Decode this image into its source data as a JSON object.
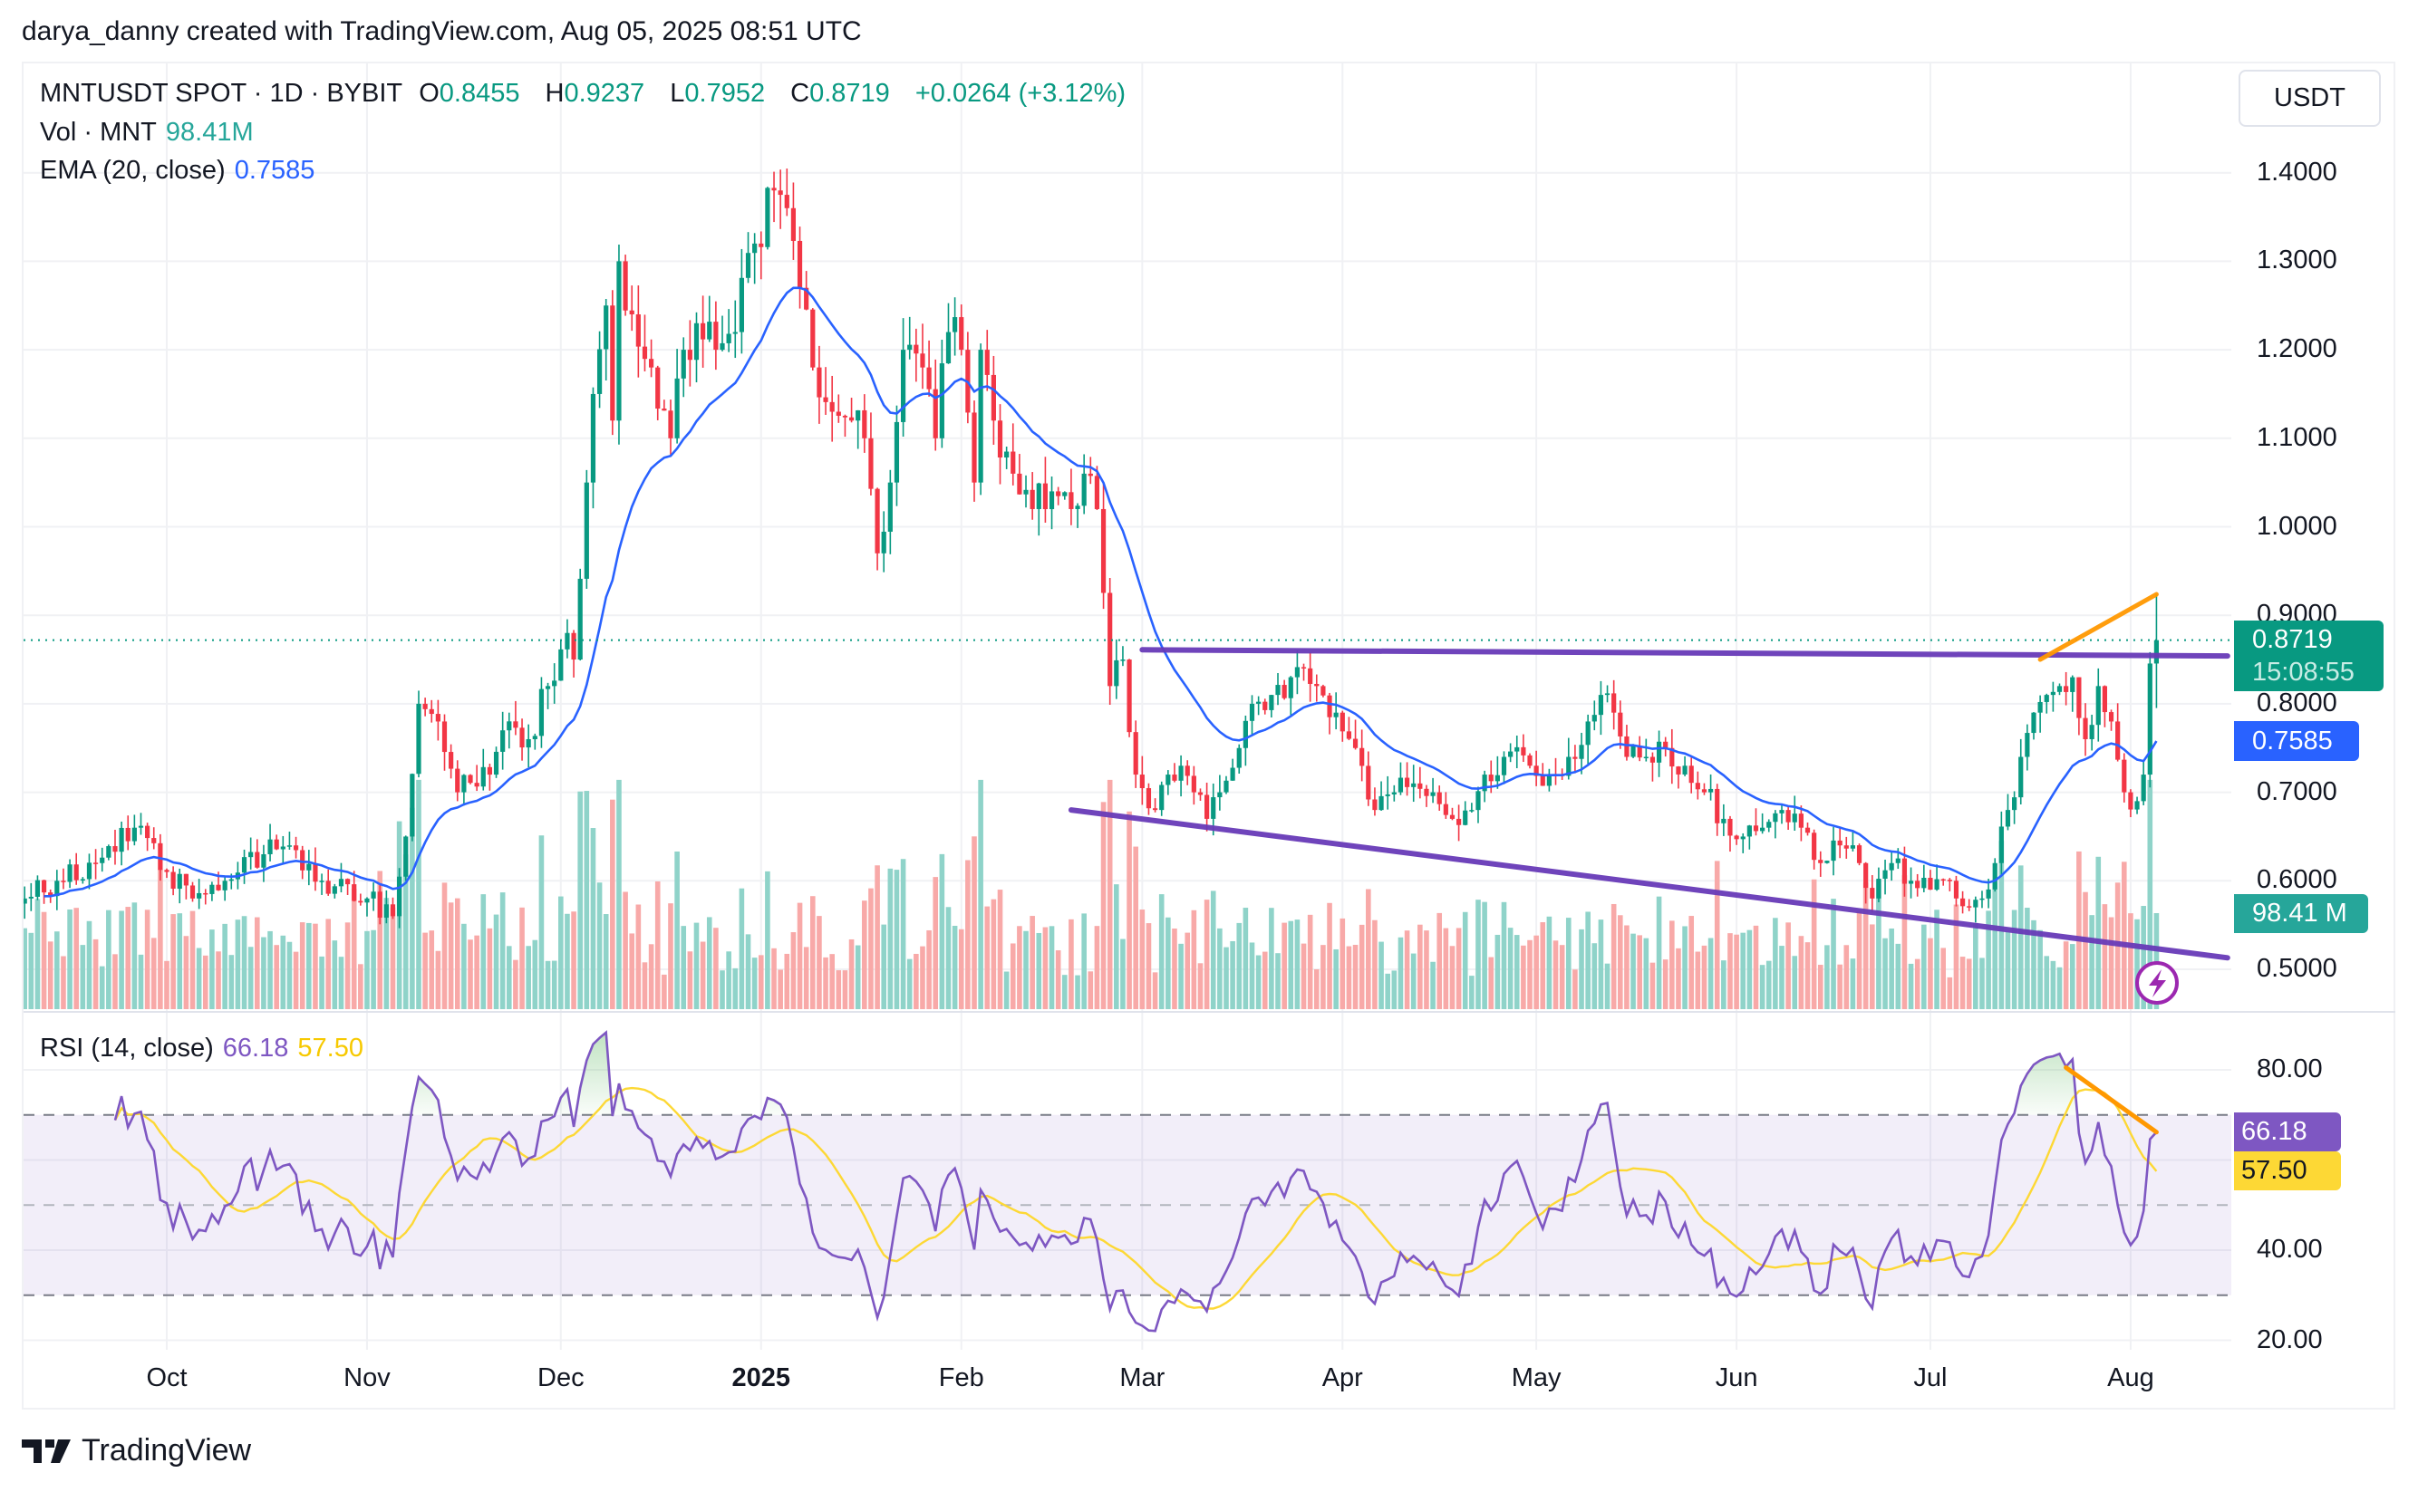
{
  "header": {
    "attribution": "darya_danny created with TradingView.com, Aug 05, 2025 08:51 UTC"
  },
  "legend": {
    "symbol": "MNTUSDT SPOT · 1D · BYBIT",
    "o_label": "O",
    "o": "0.8455",
    "h_label": "H",
    "h": "0.9237",
    "l_label": "L",
    "l": "0.7952",
    "c_label": "C",
    "c": "0.8719",
    "change": "+0.0264 (+3.12%)",
    "vol_label": "Vol · MNT",
    "vol": "98.41M",
    "ema_label": "EMA (20, close)",
    "ema": "0.7585",
    "rsi_label": "RSI (14, close)",
    "rsi": "66.18",
    "rsi_ma": "57.50"
  },
  "price_axis": {
    "currency": "USDT",
    "last_price": "0.8719",
    "countdown": "15:08:55",
    "ema_badge": "0.7585",
    "vol_badge": "98.41 M"
  },
  "rsi_axis": {
    "rsi_badge": "66.18",
    "ma_badge": "57.50"
  },
  "footer": {
    "brand": "TradingView"
  },
  "colors": {
    "up": "#089981",
    "down": "#f23645",
    "ema": "#2962ff",
    "rsi": "#7e57c2",
    "rsi_ma": "#fdd835",
    "trendline": "#673ab7",
    "divergence": "#ff9800",
    "volume_badge": "#26a69a"
  },
  "chart_data": [
    {
      "type": "candlestick",
      "title": "MNTUSDT SPOT · 1D · BYBIT",
      "x_range": [
        "2024-09-09",
        "2025-08-05"
      ],
      "ylim": [
        0.45,
        1.45
      ],
      "y_ticks": [
        "1.4000",
        "1.3000",
        "1.2000",
        "1.1000",
        "1.0000",
        "0.9000",
        "0.8000",
        "0.7000",
        "0.6000",
        "0.5000"
      ],
      "x_ticks": [
        {
          "label": "Oct",
          "date": "2024-10-01"
        },
        {
          "label": "Nov",
          "date": "2024-11-01"
        },
        {
          "label": "Dec",
          "date": "2024-12-01"
        },
        {
          "label": "2025",
          "date": "2025-01-01",
          "bold": true
        },
        {
          "label": "Feb",
          "date": "2025-02-01"
        },
        {
          "label": "Mar",
          "date": "2025-03-01"
        },
        {
          "label": "Apr",
          "date": "2025-04-01"
        },
        {
          "label": "May",
          "date": "2025-05-01"
        },
        {
          "label": "Jun",
          "date": "2025-06-01"
        },
        {
          "label": "Jul",
          "date": "2025-07-01"
        },
        {
          "label": "Aug",
          "date": "2025-08-01"
        }
      ],
      "approx_closes": [
        [
          "2024-09-09",
          0.58
        ],
        [
          "2024-09-14",
          0.6
        ],
        [
          "2024-09-20",
          0.62
        ],
        [
          "2024-09-26",
          0.66
        ],
        [
          "2024-10-01",
          0.61
        ],
        [
          "2024-10-05",
          0.58
        ],
        [
          "2024-10-10",
          0.6
        ],
        [
          "2024-10-16",
          0.63
        ],
        [
          "2024-10-20",
          0.64
        ],
        [
          "2024-10-25",
          0.6
        ],
        [
          "2024-11-01",
          0.58
        ],
        [
          "2024-11-05",
          0.56
        ],
        [
          "2024-11-07",
          0.65
        ],
        [
          "2024-11-09",
          0.8
        ],
        [
          "2024-11-12",
          0.78
        ],
        [
          "2024-11-15",
          0.7
        ],
        [
          "2024-11-20",
          0.72
        ],
        [
          "2024-11-22",
          0.77
        ],
        [
          "2024-11-26",
          0.76
        ],
        [
          "2024-11-29",
          0.82
        ],
        [
          "2024-12-02",
          0.88
        ],
        [
          "2024-12-03",
          0.85
        ],
        [
          "2024-12-05",
          1.05
        ],
        [
          "2024-12-06",
          1.15
        ],
        [
          "2024-12-08",
          1.25
        ],
        [
          "2024-12-09",
          1.12
        ],
        [
          "2024-12-10",
          1.3
        ],
        [
          "2024-12-12",
          1.24
        ],
        [
          "2024-12-15",
          1.18
        ],
        [
          "2024-12-18",
          1.1
        ],
        [
          "2024-12-20",
          1.2
        ],
        [
          "2024-12-22",
          1.23
        ],
        [
          "2024-12-25",
          1.2
        ],
        [
          "2024-12-28",
          1.22
        ],
        [
          "2024-12-31",
          1.32
        ],
        [
          "2025-01-03",
          1.38
        ],
        [
          "2025-01-05",
          1.36
        ],
        [
          "2025-01-07",
          1.27
        ],
        [
          "2025-01-09",
          1.18
        ],
        [
          "2025-01-12",
          1.13
        ],
        [
          "2025-01-15",
          1.12
        ],
        [
          "2025-01-17",
          1.1
        ],
        [
          "2025-01-19",
          0.97
        ],
        [
          "2025-01-21",
          1.05
        ],
        [
          "2025-01-23",
          1.2
        ],
        [
          "2025-01-26",
          1.18
        ],
        [
          "2025-01-28",
          1.1
        ],
        [
          "2025-01-30",
          1.22
        ],
        [
          "2025-02-01",
          1.2
        ],
        [
          "2025-02-03",
          1.05
        ],
        [
          "2025-02-04",
          1.2
        ],
        [
          "2025-02-06",
          1.12
        ],
        [
          "2025-02-09",
          1.06
        ],
        [
          "2025-02-12",
          1.02
        ],
        [
          "2025-02-15",
          1.04
        ],
        [
          "2025-02-18",
          1.02
        ],
        [
          "2025-02-20",
          1.06
        ],
        [
          "2025-02-22",
          1.02
        ],
        [
          "2025-02-24",
          0.82
        ],
        [
          "2025-02-26",
          0.85
        ],
        [
          "2025-02-28",
          0.72
        ],
        [
          "2025-03-03",
          0.68
        ],
        [
          "2025-03-05",
          0.72
        ],
        [
          "2025-03-07",
          0.73
        ],
        [
          "2025-03-09",
          0.7
        ],
        [
          "2025-03-11",
          0.67
        ],
        [
          "2025-03-13",
          0.7
        ],
        [
          "2025-03-16",
          0.75
        ],
        [
          "2025-03-18",
          0.8
        ],
        [
          "2025-03-21",
          0.81
        ],
        [
          "2025-03-24",
          0.83
        ],
        [
          "2025-03-26",
          0.84
        ],
        [
          "2025-03-28",
          0.82
        ],
        [
          "2025-03-31",
          0.79
        ],
        [
          "2025-04-03",
          0.75
        ],
        [
          "2025-04-06",
          0.68
        ],
        [
          "2025-04-09",
          0.7
        ],
        [
          "2025-04-12",
          0.71
        ],
        [
          "2025-04-15",
          0.7
        ],
        [
          "2025-04-18",
          0.67
        ],
        [
          "2025-04-21",
          0.68
        ],
        [
          "2025-04-23",
          0.72
        ],
        [
          "2025-04-26",
          0.74
        ],
        [
          "2025-04-30",
          0.73
        ],
        [
          "2025-05-03",
          0.72
        ],
        [
          "2025-05-06",
          0.74
        ],
        [
          "2025-05-09",
          0.78
        ],
        [
          "2025-05-11",
          0.81
        ],
        [
          "2025-05-13",
          0.79
        ],
        [
          "2025-05-15",
          0.74
        ],
        [
          "2025-05-18",
          0.74
        ],
        [
          "2025-05-21",
          0.75
        ],
        [
          "2025-05-24",
          0.73
        ],
        [
          "2025-05-27",
          0.7
        ],
        [
          "2025-05-30",
          0.67
        ],
        [
          "2025-06-02",
          0.65
        ],
        [
          "2025-06-05",
          0.66
        ],
        [
          "2025-06-08",
          0.68
        ],
        [
          "2025-06-11",
          0.66
        ],
        [
          "2025-06-14",
          0.62
        ],
        [
          "2025-06-17",
          0.64
        ],
        [
          "2025-06-20",
          0.62
        ],
        [
          "2025-06-22",
          0.58
        ],
        [
          "2025-06-25",
          0.62
        ],
        [
          "2025-06-28",
          0.6
        ],
        [
          "2025-07-01",
          0.59
        ],
        [
          "2025-07-04",
          0.6
        ],
        [
          "2025-07-07",
          0.57
        ],
        [
          "2025-07-09",
          0.58
        ],
        [
          "2025-07-11",
          0.62
        ],
        [
          "2025-07-13",
          0.68
        ],
        [
          "2025-07-15",
          0.74
        ],
        [
          "2025-07-17",
          0.79
        ],
        [
          "2025-07-19",
          0.81
        ],
        [
          "2025-07-21",
          0.82
        ],
        [
          "2025-07-23",
          0.83
        ],
        [
          "2025-07-25",
          0.76
        ],
        [
          "2025-07-27",
          0.82
        ],
        [
          "2025-07-29",
          0.78
        ],
        [
          "2025-07-31",
          0.7
        ],
        [
          "2025-08-02",
          0.69
        ],
        [
          "2025-08-03",
          0.72
        ],
        [
          "2025-08-04",
          0.8455
        ]
      ],
      "last_bar": {
        "date": "2025-08-05",
        "open": 0.8455,
        "high": 0.9237,
        "low": 0.7952,
        "close": 0.8719,
        "volume_m": 98.41
      },
      "ema_period": 20,
      "drawings": [
        {
          "kind": "horizontal-resistance",
          "color": "#673ab7",
          "from": [
            "2025-03-01",
            0.861
          ],
          "to": [
            "2025-08-16",
            0.854
          ]
        },
        {
          "kind": "descending-support",
          "color": "#673ab7",
          "from": [
            "2025-02-18",
            0.68
          ],
          "to": [
            "2025-08-16",
            0.513
          ]
        },
        {
          "kind": "price-higher-high",
          "color": "#ff9800",
          "from": [
            "2025-07-18",
            0.85
          ],
          "to": [
            "2025-08-05",
            0.9237
          ]
        }
      ]
    },
    {
      "type": "line",
      "title": "RSI (14, close)",
      "ylim": [
        15,
        90
      ],
      "y_ticks": [
        "80.00",
        "40.00",
        "20.00"
      ],
      "bands": {
        "upper": 70,
        "middle": 50,
        "lower": 30
      },
      "last_rsi": 66.18,
      "last_ma": 57.5,
      "drawings": [
        {
          "kind": "rsi-lower-high",
          "color": "#ff9800",
          "from": [
            "2025-07-22",
            80.5
          ],
          "to": [
            "2025-08-05",
            66.18
          ]
        }
      ]
    }
  ]
}
